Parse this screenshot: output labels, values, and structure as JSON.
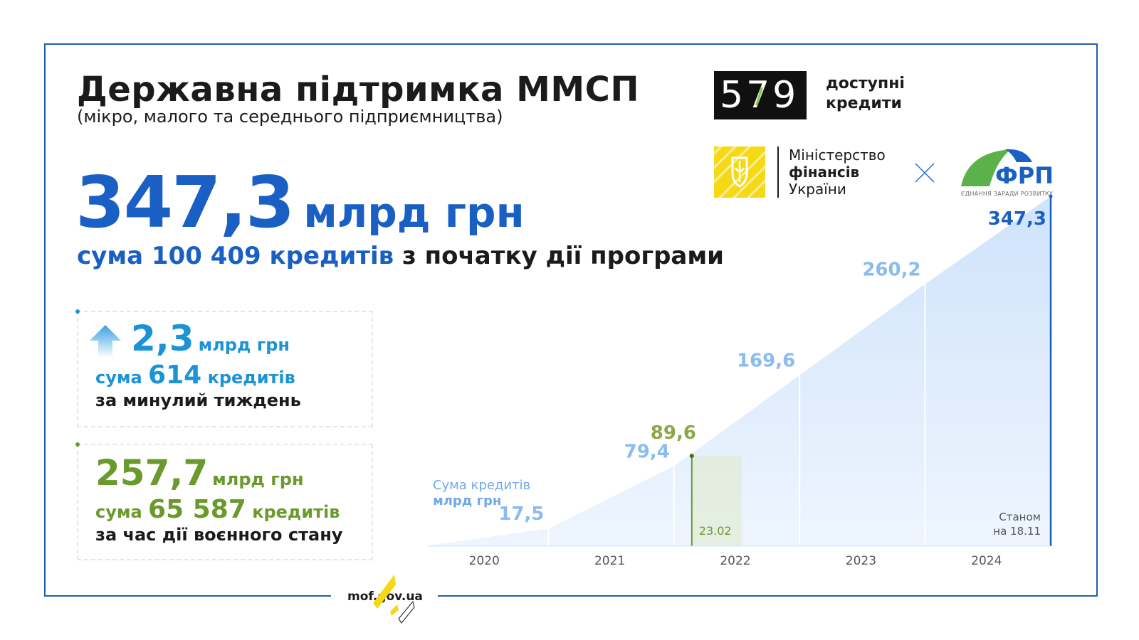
{
  "header": {
    "title": "Державна підтримка ММСП",
    "subtitle": "(мікро, малого та середнього підприємництва)"
  },
  "total": {
    "amount": "347,3",
    "unit": "млрд грн",
    "line_prefix": "сума",
    "loans_count": "100 409",
    "loans_word": "кредитів",
    "line_suffix": "з початку дії програми"
  },
  "week": {
    "amount": "2,3",
    "unit": "млрд грн",
    "line_prefix": "сума",
    "loans_count": "614",
    "loans_word": "кредитів",
    "period": "за минулий тиждень",
    "color": "#1b93d6",
    "icon": "arrow-up-icon"
  },
  "war": {
    "amount": "257,7",
    "unit": "млрд грн",
    "line_prefix": "сума",
    "loans_count": "65 587",
    "loans_word": "кредитів",
    "period": "за час дії воєнного стану",
    "color": "#6a9a2c"
  },
  "logos": {
    "program_digits": "579",
    "program_line1": "доступні",
    "program_line2": "кредити",
    "ministry_line1": "Міністерство",
    "ministry_line2": "фінансів",
    "ministry_line3": "України",
    "frp_name": "ФРП",
    "frp_tagline": "ЄДНАННЯ ЗАРАДИ РОЗВИТКУ"
  },
  "chart_data": {
    "type": "area",
    "legend_line1": "Сума кредитів",
    "legend_line2": "млрд грн",
    "x_labels": [
      "2020",
      "2021",
      "2022",
      "2023",
      "2024"
    ],
    "points": [
      {
        "label": "",
        "value": 0
      },
      {
        "label": "17,5",
        "value": 17.5
      },
      {
        "label": "79,4",
        "value": 79.4
      },
      {
        "label": "169,6",
        "value": 169.6
      },
      {
        "label": "260,2",
        "value": 260.2
      },
      {
        "label": "347,3",
        "value": 347.3
      }
    ],
    "war_marker": {
      "date": "23.02",
      "value": 89.6,
      "label": "89,6",
      "color": "#8aa84a"
    },
    "note_line1": "Станом",
    "note_line2": "на 18.11",
    "colors": {
      "area": "#cfe3fb",
      "label": "#8bbcf0",
      "last_label": "#1a5fc4",
      "axis_text": "#555555"
    }
  },
  "footer": {
    "url": "mof.gov.ua"
  }
}
